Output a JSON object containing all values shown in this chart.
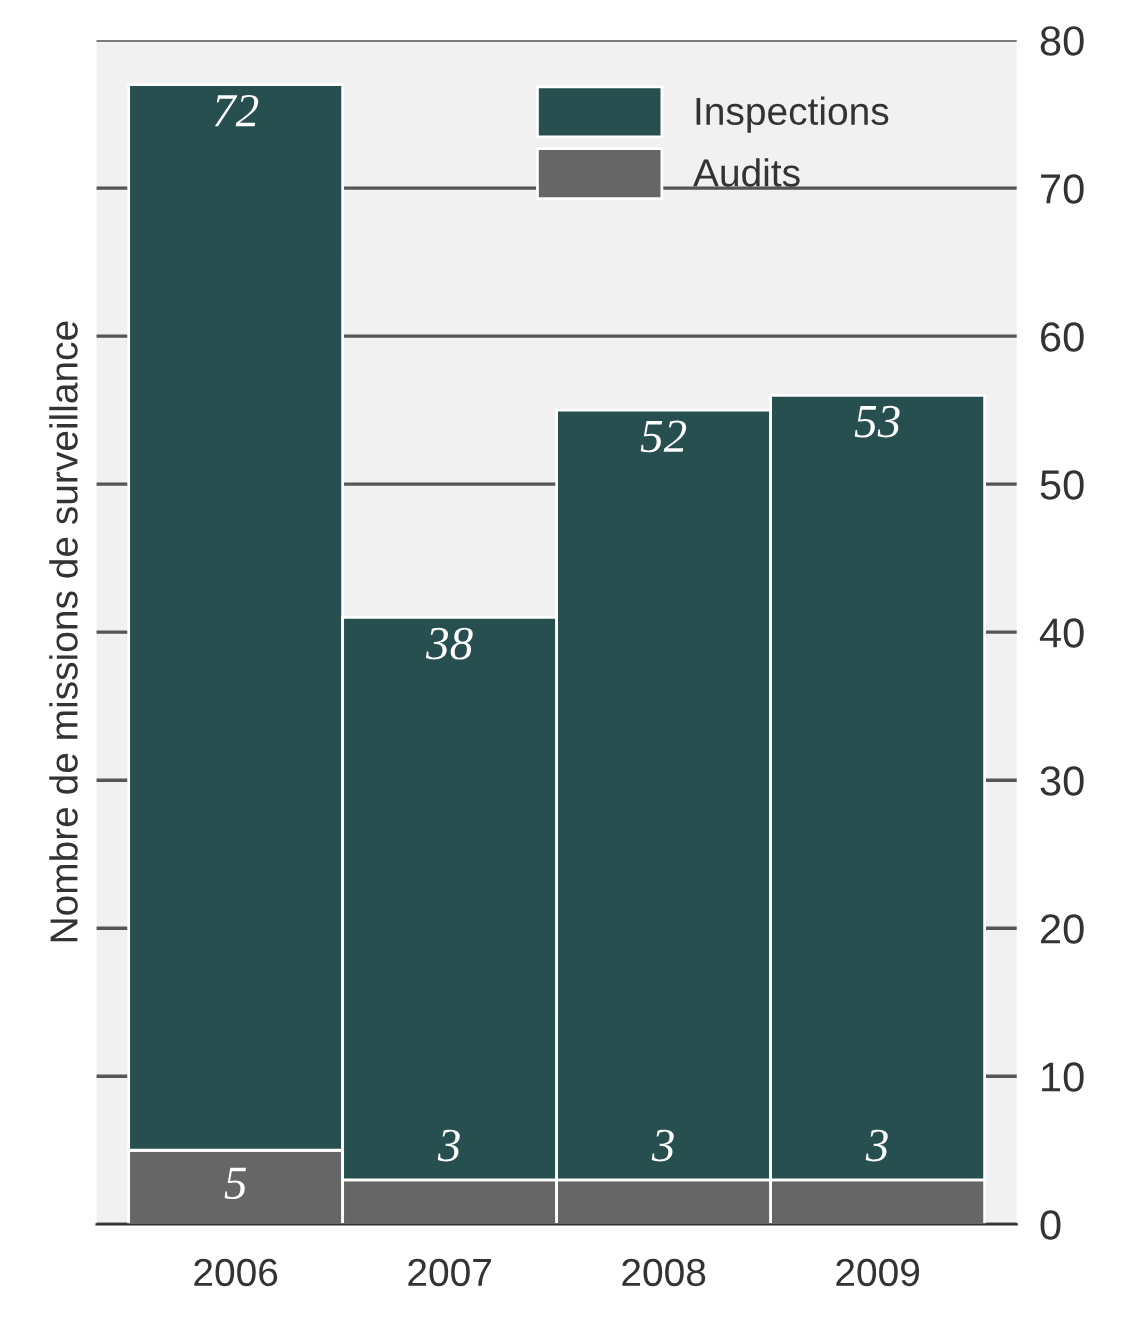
{
  "chart_data": {
    "type": "bar",
    "stacked": true,
    "ylabel": "Nombre de missions de surveillance",
    "categories": [
      "2006",
      "2007",
      "2008",
      "2009"
    ],
    "series": [
      {
        "name": "Audits",
        "color": "#666666",
        "values": [
          5,
          3,
          3,
          3
        ]
      },
      {
        "name": "Inspections",
        "color": "#274f4f",
        "values": [
          72,
          38,
          52,
          53
        ]
      }
    ],
    "ylim": [
      0,
      80
    ],
    "yticks": [
      0,
      10,
      20,
      30,
      40,
      50,
      60,
      70,
      80
    ],
    "grid": "y",
    "legend": "top right",
    "data_labels": true
  }
}
